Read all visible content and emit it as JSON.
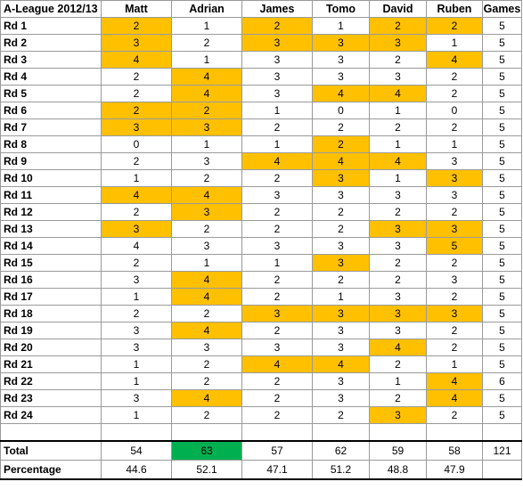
{
  "sheet": {
    "title": "A-League 2012/13",
    "players": [
      "Matt",
      "Adrian",
      "James",
      "Tomo",
      "David",
      "Ruben"
    ],
    "games_header": "Games",
    "highlight_color": "#ffc000",
    "winner_color": "#00b050",
    "rounds": [
      {
        "label": "Rd 1",
        "scores": [
          2,
          1,
          2,
          1,
          2,
          2
        ],
        "hl": [
          1,
          0,
          1,
          0,
          1,
          1
        ],
        "games": 5
      },
      {
        "label": "Rd 2",
        "scores": [
          3,
          2,
          3,
          3,
          3,
          1
        ],
        "hl": [
          1,
          0,
          1,
          1,
          1,
          0
        ],
        "games": 5
      },
      {
        "label": "Rd 3",
        "scores": [
          4,
          1,
          3,
          3,
          2,
          4
        ],
        "hl": [
          1,
          0,
          0,
          0,
          0,
          1
        ],
        "games": 5
      },
      {
        "label": "Rd 4",
        "scores": [
          2,
          4,
          3,
          3,
          3,
          2
        ],
        "hl": [
          0,
          1,
          0,
          0,
          0,
          0
        ],
        "games": 5
      },
      {
        "label": "Rd 5",
        "scores": [
          2,
          4,
          3,
          4,
          4,
          2
        ],
        "hl": [
          0,
          1,
          0,
          1,
          1,
          0
        ],
        "games": 5
      },
      {
        "label": "Rd 6",
        "scores": [
          2,
          2,
          1,
          0,
          1,
          0
        ],
        "hl": [
          1,
          1,
          0,
          0,
          0,
          0
        ],
        "games": 5
      },
      {
        "label": "Rd 7",
        "scores": [
          3,
          3,
          2,
          2,
          2,
          2
        ],
        "hl": [
          1,
          1,
          0,
          0,
          0,
          0
        ],
        "games": 5
      },
      {
        "label": "Rd 8",
        "scores": [
          0,
          1,
          1,
          2,
          1,
          1
        ],
        "hl": [
          0,
          0,
          0,
          1,
          0,
          0
        ],
        "games": 5
      },
      {
        "label": "Rd 9",
        "scores": [
          2,
          3,
          4,
          4,
          4,
          3
        ],
        "hl": [
          0,
          0,
          1,
          1,
          1,
          0
        ],
        "games": 5
      },
      {
        "label": "Rd 10",
        "scores": [
          1,
          2,
          2,
          3,
          1,
          3
        ],
        "hl": [
          0,
          0,
          0,
          1,
          0,
          1
        ],
        "games": 5
      },
      {
        "label": "Rd 11",
        "scores": [
          4,
          4,
          3,
          3,
          3,
          3
        ],
        "hl": [
          1,
          1,
          0,
          0,
          0,
          0
        ],
        "games": 5
      },
      {
        "label": "Rd 12",
        "scores": [
          2,
          3,
          2,
          2,
          2,
          2
        ],
        "hl": [
          0,
          1,
          0,
          0,
          0,
          0
        ],
        "games": 5
      },
      {
        "label": "Rd 13",
        "scores": [
          3,
          2,
          2,
          2,
          3,
          3
        ],
        "hl": [
          1,
          0,
          0,
          0,
          1,
          1
        ],
        "games": 5
      },
      {
        "label": "Rd 14",
        "scores": [
          4,
          3,
          3,
          3,
          3,
          5
        ],
        "hl": [
          0,
          0,
          0,
          0,
          0,
          1
        ],
        "games": 5
      },
      {
        "label": "Rd 15",
        "scores": [
          2,
          1,
          1,
          3,
          2,
          2
        ],
        "hl": [
          0,
          0,
          0,
          1,
          0,
          0
        ],
        "games": 5
      },
      {
        "label": "Rd 16",
        "scores": [
          3,
          4,
          2,
          2,
          2,
          3
        ],
        "hl": [
          0,
          1,
          0,
          0,
          0,
          0
        ],
        "games": 5
      },
      {
        "label": "Rd 17",
        "scores": [
          1,
          4,
          2,
          1,
          3,
          2
        ],
        "hl": [
          0,
          1,
          0,
          0,
          0,
          0
        ],
        "games": 5
      },
      {
        "label": "Rd 18",
        "scores": [
          2,
          2,
          3,
          3,
          3,
          3
        ],
        "hl": [
          0,
          0,
          1,
          1,
          1,
          1
        ],
        "games": 5
      },
      {
        "label": "Rd 19",
        "scores": [
          3,
          4,
          2,
          3,
          3,
          2
        ],
        "hl": [
          0,
          1,
          0,
          0,
          0,
          0
        ],
        "games": 5
      },
      {
        "label": "Rd 20",
        "scores": [
          3,
          3,
          3,
          3,
          4,
          2
        ],
        "hl": [
          0,
          0,
          0,
          0,
          1,
          0
        ],
        "games": 5
      },
      {
        "label": "Rd 21",
        "scores": [
          1,
          2,
          4,
          4,
          2,
          1
        ],
        "hl": [
          0,
          0,
          1,
          1,
          0,
          0
        ],
        "games": 5
      },
      {
        "label": "Rd 22",
        "scores": [
          1,
          2,
          2,
          3,
          1,
          4
        ],
        "hl": [
          0,
          0,
          0,
          0,
          0,
          1
        ],
        "games": 6
      },
      {
        "label": "Rd 23",
        "scores": [
          3,
          4,
          2,
          3,
          2,
          4
        ],
        "hl": [
          0,
          1,
          0,
          0,
          0,
          1
        ],
        "games": 5
      },
      {
        "label": "Rd 24",
        "scores": [
          1,
          2,
          2,
          2,
          3,
          2
        ],
        "hl": [
          0,
          0,
          0,
          0,
          1,
          0
        ],
        "games": 5
      }
    ],
    "total": {
      "label": "Total",
      "values": [
        54,
        63,
        57,
        62,
        59,
        58
      ],
      "games": 121,
      "winner_index": 1
    },
    "percentage": {
      "label": "Percentage",
      "values": [
        "44.6",
        "52.1",
        "47.1",
        "51.2",
        "48.8",
        "47.9"
      ]
    }
  }
}
